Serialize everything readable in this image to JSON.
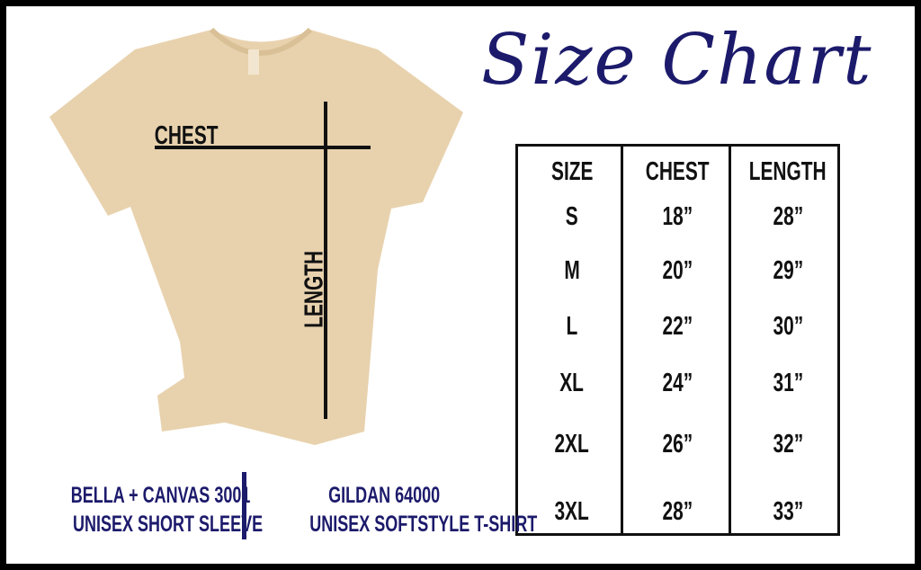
{
  "title": "Size Chart",
  "shirt_labels": {
    "chest": "CHEST",
    "length": "LENGTH"
  },
  "table": {
    "headers": [
      "SIZE",
      "CHEST",
      "LENGTH"
    ],
    "rows": [
      [
        "S",
        "18”",
        "28”"
      ],
      [
        "M",
        "20”",
        "29”"
      ],
      [
        "L",
        "22”",
        "30”"
      ],
      [
        "XL",
        "24”",
        "31”"
      ],
      [
        "2XL",
        "26”",
        "32”"
      ],
      [
        "3XL",
        "28”",
        "33”"
      ]
    ]
  },
  "brands": [
    {
      "line1": "BELLA + CANVAS 3001",
      "line2": "UNISEX SHORT SLEEVE"
    },
    {
      "line1": "GILDAN 64000",
      "line2": "UNISEX SOFTSTYLE T-SHIRT"
    }
  ],
  "colors": {
    "navy": "#1c1a6b",
    "shirt": "#e8d2ae",
    "border": "#000000"
  }
}
